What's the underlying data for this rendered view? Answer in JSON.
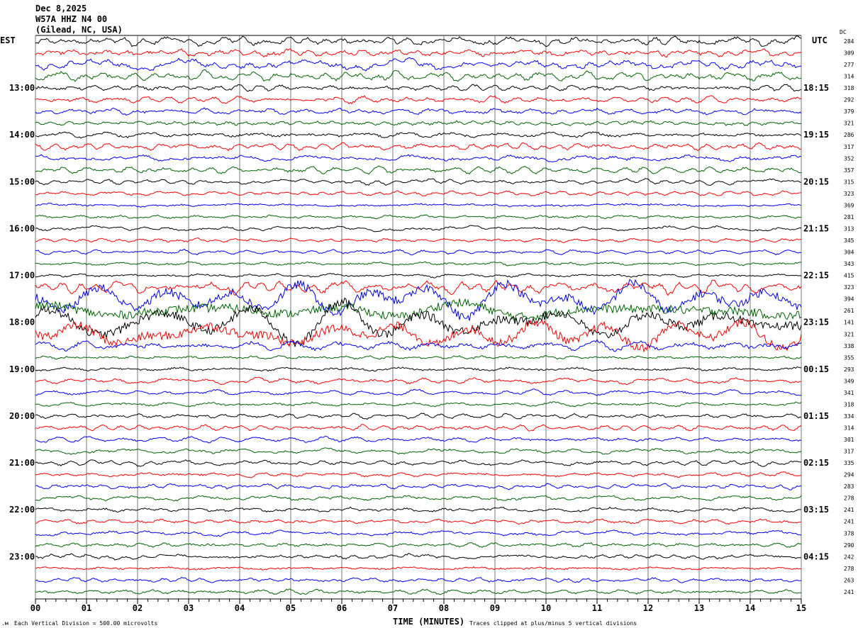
{
  "header": {
    "date": "Dec 8,2025",
    "station": "W57A HHZ N4 00",
    "location": "(Gilead, NC, USA)"
  },
  "left_axis_title": "EST",
  "right_axis_title": "UTC",
  "dc_title": "DC",
  "footer": {
    "scale": "Each Vertical Division =  500.00 microvolts",
    "xlabel": "TIME (MINUTES)",
    "clip_note": "Traces clipped at plus/minus 5 vertical divisions"
  },
  "chart_data": {
    "type": "helicorder",
    "xlabel": "TIME (MINUTES)",
    "xlim": [
      0,
      15
    ],
    "x_ticks": [
      "00",
      "01",
      "02",
      "03",
      "04",
      "05",
      "06",
      "07",
      "08",
      "09",
      "10",
      "11",
      "12",
      "13",
      "14",
      "15"
    ],
    "minutes_per_row": 15,
    "row_colors": [
      "#000000",
      "#ff0000",
      "#0000ff",
      "#006400"
    ],
    "est_labels": [
      "13:00",
      "14:00",
      "15:00",
      "16:00",
      "17:00",
      "18:00",
      "19:00",
      "20:00",
      "21:00",
      "22:00",
      "23:00"
    ],
    "utc_labels": [
      "18:15",
      "19:15",
      "20:15",
      "21:15",
      "22:15",
      "23:15",
      "00:15",
      "01:15",
      "02:15",
      "03:15",
      "04:15"
    ],
    "dc_offsets": [
      "284",
      "309",
      "277",
      "314",
      "318",
      "292",
      "379",
      "321",
      "286",
      "317",
      "352",
      "357",
      "315",
      "323",
      "369",
      "281",
      "313",
      "345",
      "304",
      "343",
      "415",
      "323",
      "394",
      "261",
      "141",
      "321",
      "338",
      "355",
      "293",
      "349",
      "341",
      "318",
      "334",
      "314",
      "301",
      "317",
      "335",
      "294",
      "283",
      "278",
      "241",
      "241",
      "378",
      "290",
      "242",
      "278",
      "263",
      "241"
    ],
    "grid": true
  }
}
